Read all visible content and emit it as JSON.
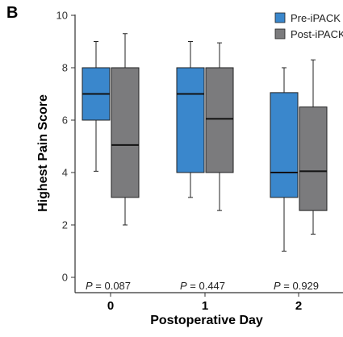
{
  "panel_label": "B",
  "chart_data": {
    "type": "box",
    "xlabel": "Postoperative Day",
    "ylabel": "Highest Pain Score",
    "categories": [
      "0",
      "1",
      "2"
    ],
    "ylim": [
      0,
      10
    ],
    "yticks": [
      0,
      2,
      4,
      6,
      8,
      10
    ],
    "grid": false,
    "legend_position": "top-right",
    "series": [
      {
        "name": "Pre-iPACK",
        "color": "#3a87cc",
        "boxes": [
          {
            "min": 4.05,
            "q1": 6,
            "median": 7,
            "q3": 8,
            "max": 9
          },
          {
            "min": 3.05,
            "q1": 4,
            "median": 7,
            "q3": 8,
            "max": 9
          },
          {
            "min": 1.0,
            "q1": 3.05,
            "median": 4,
            "q3": 7.05,
            "max": 8
          }
        ]
      },
      {
        "name": "Post-iPACK",
        "color": "#7b7b7d",
        "boxes": [
          {
            "min": 2.0,
            "q1": 3.05,
            "median": 5.05,
            "q3": 8,
            "max": 9.3
          },
          {
            "min": 2.55,
            "q1": 4,
            "median": 6.05,
            "q3": 8,
            "max": 8.95
          },
          {
            "min": 1.65,
            "q1": 2.55,
            "median": 4.05,
            "q3": 6.5,
            "max": 8.3
          }
        ]
      }
    ],
    "annotations": [
      {
        "category": "0",
        "p_label": "P",
        "p_value": "= 0.087"
      },
      {
        "category": "1",
        "p_label": "P",
        "p_value": "= 0.447"
      },
      {
        "category": "2",
        "p_label": "P",
        "p_value": "= 0.929"
      }
    ]
  }
}
